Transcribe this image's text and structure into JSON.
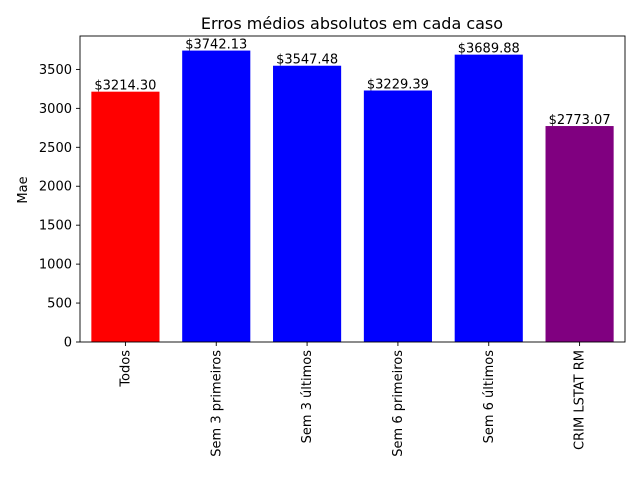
{
  "chart_data": {
    "type": "bar",
    "title": "Erros médios absolutos em cada caso",
    "xlabel": "",
    "ylabel": "Mae",
    "categories": [
      "Todos",
      "Sem 3 primeiros",
      "Sem 3 últimos",
      "Sem 6 primeiros",
      "Sem 6 últimos",
      "CRIM LSTAT RM"
    ],
    "values": [
      3214.3,
      3742.13,
      3547.48,
      3229.39,
      3689.88,
      2773.07
    ],
    "value_labels": [
      "$3214.30",
      "$3742.13",
      "$3547.48",
      "$3229.39",
      "$3689.88",
      "$2773.07"
    ],
    "bar_colors": [
      "#ff0000",
      "#0000ff",
      "#0000ff",
      "#0000ff",
      "#0000ff",
      "#800080"
    ],
    "ylim": [
      0,
      3929.24
    ],
    "yticks": [
      0,
      500,
      1000,
      1500,
      2000,
      2500,
      3000,
      3500
    ],
    "ytick_labels": [
      "0",
      "500",
      "1000",
      "1500",
      "2000",
      "2500",
      "3000",
      "3500"
    ],
    "grid": false,
    "legend": "none"
  }
}
